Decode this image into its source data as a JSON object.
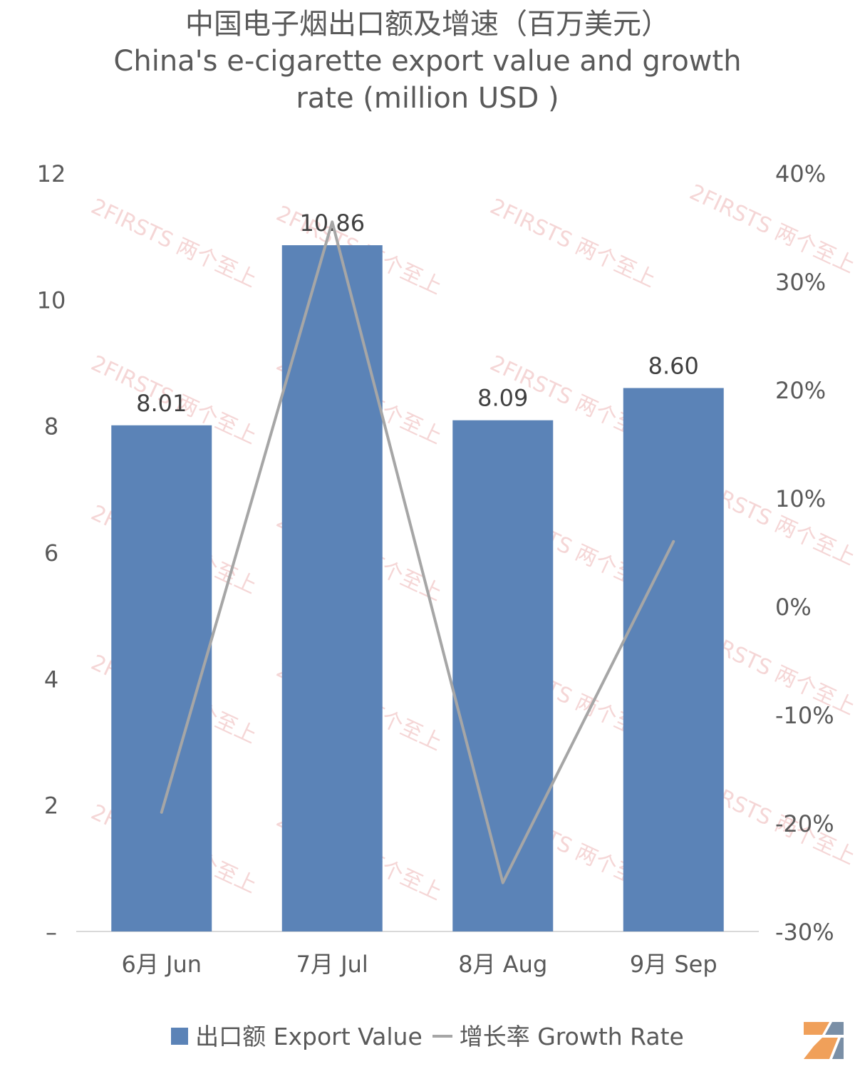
{
  "title": {
    "line1": "中国电子烟出口额及增速（百万美元）",
    "line2": "China's e-cigarette export value and growth",
    "line3": "rate (million USD )"
  },
  "chart_data": {
    "type": "bar+line",
    "categories": [
      "6月 Jun",
      "7月 Jul",
      "8月 Aug",
      "9月 Sep"
    ],
    "series": [
      {
        "name": "出口额 Export Value",
        "type": "bar",
        "axis": "left",
        "values": [
          8.01,
          10.86,
          8.09,
          8.6
        ],
        "labels": [
          "8.01",
          "10.86",
          "8.09",
          "8.60"
        ],
        "color": "#5b83b7"
      },
      {
        "name": "增长率 Growth Rate",
        "type": "line",
        "axis": "right",
        "values": [
          -19,
          35.5,
          -25.5,
          6
        ],
        "color": "#a6a6a6"
      }
    ],
    "left_axis": {
      "range": [
        0,
        12
      ],
      "ticks": [
        "–",
        "2",
        "4",
        "6",
        "8",
        "10",
        "12"
      ]
    },
    "right_axis": {
      "range": [
        -30,
        40
      ],
      "ticks": [
        "-30%",
        "-20%",
        "-10%",
        "0%",
        "10%",
        "20%",
        "30%",
        "40%"
      ]
    },
    "grid": false,
    "legend_position": "bottom"
  },
  "watermark": {
    "text": "2FIRSTS 两个至上"
  }
}
